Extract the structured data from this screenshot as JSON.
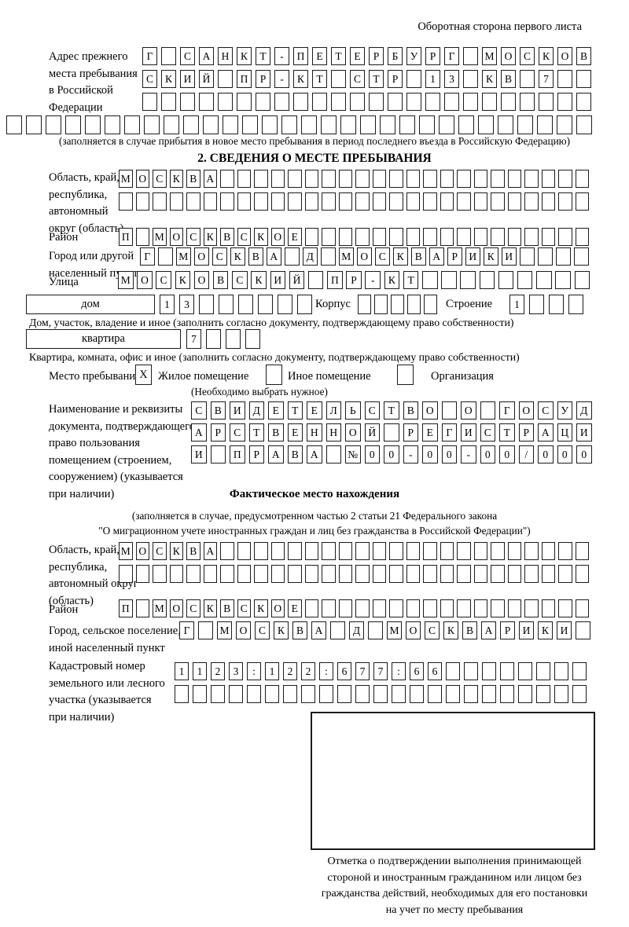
{
  "header": {
    "corner_note": "Оборотная сторона первого листа"
  },
  "prev_stay": {
    "label_lines": [
      "Адрес прежнего",
      "места пребывания",
      "в Российской",
      "Федерации"
    ],
    "row1": {
      "len": 24,
      "text": "Г САНКТ-ПЕТЕРБУРГ МОСКОВ"
    },
    "row2": {
      "len": 24,
      "text": "СКИЙ ПР-КТ СТР 13 КВ 7"
    },
    "row3": {
      "len": 24,
      "text": ""
    },
    "row4": {
      "len": 30,
      "text": ""
    },
    "note": "(заполняется в случае прибытия в новое место пребывания в период последнего въезда в Российскую Федерацию)"
  },
  "section2": {
    "title": "2. СВЕДЕНИЯ О МЕСТЕ ПРЕБЫВАНИЯ",
    "region": {
      "label_lines": [
        "Область, край,",
        "республика,",
        "автономный",
        "округ (область)"
      ],
      "row1": {
        "len": 28,
        "text": "МОСКВА"
      },
      "row2": {
        "len": 28,
        "text": ""
      }
    },
    "district": {
      "label": "Район",
      "row": {
        "len": 28,
        "text": "П МОСКВСКОЕ"
      }
    },
    "city": {
      "label_lines": [
        "Город или другой",
        "населенный пункт"
      ],
      "row": {
        "len": 25,
        "text": "Г МОСКВА Д МОСКВАРИКИ"
      }
    },
    "street": {
      "label": "Улица",
      "row": {
        "len": 25,
        "text": "МОСКОВСКИЙ ПР-КТ"
      }
    },
    "house": {
      "box_label": "дом",
      "cells": {
        "len": 8,
        "text": "13"
      },
      "korpus_label": "Корпус",
      "korpus_cells": {
        "len": 5,
        "text": ""
      },
      "stroenie_label": "Строение",
      "stroenie_cells": {
        "len": 4,
        "text": "1"
      }
    },
    "house_note": "Дом, участок, владение и иное (заполнить согласно документу, подтверждающему право собственности)",
    "apartment": {
      "box_label": "квартира",
      "cells": {
        "len": 4,
        "text": "7"
      }
    },
    "apartment_note": "Квартира, комната, офис и иное (заполнить согласно документу, подтверждающему право собственности)",
    "place_type": {
      "label": "Место пребывания:",
      "options": [
        {
          "label": "Жилое помещение",
          "mark": "X"
        },
        {
          "label": "Иное помещение",
          "mark": ""
        },
        {
          "label": "Организация",
          "mark": ""
        }
      ],
      "hint": "(Необходимо выбрать нужное)"
    },
    "document": {
      "label_lines": [
        "Наименование и реквизиты",
        "документа, подтверждающего",
        "право пользования",
        "помещением (строением,",
        "сооружением) (указывается",
        "при наличии)"
      ],
      "row1": {
        "len": 21,
        "text": "СВИДЕТЕЛЬСТВО О ГОСУД"
      },
      "row2": {
        "len": 21,
        "text": "АРСТВЕННОЙ РЕГИСТРАЦИ"
      },
      "row3": {
        "len": 21,
        "text": "И ПРАВА №00-00-00/000"
      }
    }
  },
  "actual_location": {
    "title": "Фактическое место нахождения",
    "note_lines": [
      "(заполняется в случае, предусмотренном частью 2 статьи 21 Федерального закона",
      "\"О миграционном учете иностранных граждан и лиц без гражданства в Российской Федерации\")"
    ],
    "region": {
      "label_lines": [
        "Область, край,",
        "республика,",
        "автономный округ",
        "(область)"
      ],
      "row1": {
        "len": 28,
        "text": "МОСКВА"
      },
      "row2": {
        "len": 28,
        "text": ""
      }
    },
    "district": {
      "label": "Район",
      "row": {
        "len": 28,
        "text": "П МОСКВСКОЕ"
      }
    },
    "city": {
      "label_lines": [
        "Город, сельское поселение,",
        "иной населенный пункт"
      ],
      "row": {
        "len": 22,
        "text": "Г МОСКВА Д МОСКВАРИКИ"
      }
    },
    "cadastral": {
      "label_lines": [
        "Кадастровый номер",
        "земельного или лесного",
        "участка (указывается",
        "при наличии)"
      ],
      "row1": {
        "len": 23,
        "text": "1123:122:677:66"
      },
      "row2": {
        "len": 23,
        "text": ""
      }
    },
    "stamp_caption_lines": [
      "Отметка о подтверждении выполнения принимающей",
      "стороной и иностранным гражданином или лицом без",
      "гражданства действий, необходимых для его постановки",
      "на учет по месту пребывания"
    ]
  }
}
